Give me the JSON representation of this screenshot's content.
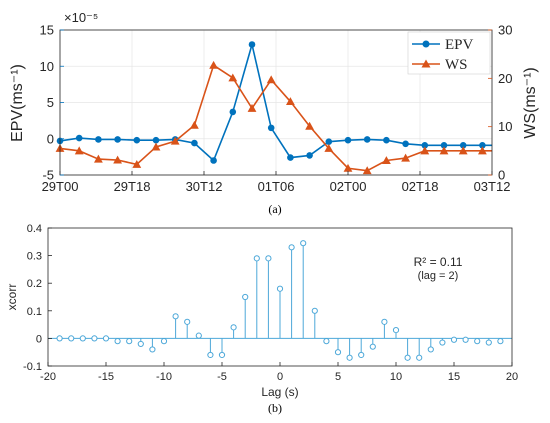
{
  "chart_data": [
    {
      "type": "line",
      "caption": "(a)",
      "x_ticks": [
        "29T00",
        "29T18",
        "30T12",
        "01T06",
        "02T00",
        "02T18",
        "03T12"
      ],
      "x_range": [
        0,
        27
      ],
      "y_left": {
        "label": "EPV(ms⁻¹)",
        "multiplier": "×10⁻⁵",
        "ylim": [
          -5,
          15
        ],
        "ticks": [
          "-5",
          "0",
          "5",
          "10",
          "15"
        ],
        "color": "#0072BD"
      },
      "y_right": {
        "label": "WS(ms⁻¹)",
        "ylim": [
          0,
          30
        ],
        "ticks": [
          "0",
          "10",
          "20",
          "30"
        ],
        "color": "#D95319"
      },
      "grid": true,
      "legend_position": "top-right",
      "series": [
        {
          "name": "EPV",
          "axis": "left",
          "marker": "circle",
          "color": "#0072BD",
          "x": [
            0,
            1.2,
            2.4,
            3.6,
            4.8,
            6,
            7.2,
            8.4,
            9.6,
            10.8,
            12,
            13.2,
            14.4,
            15.6,
            16.8,
            18,
            19.2,
            20.4,
            21.6,
            22.8,
            24,
            25.2,
            26.4,
            27
          ],
          "values": [
            -0.3,
            0.1,
            -0.1,
            -0.1,
            -0.2,
            -0.2,
            -0.1,
            -0.6,
            -3.0,
            3.7,
            13.0,
            1.5,
            -2.6,
            -2.3,
            -0.4,
            -0.2,
            -0.1,
            -0.2,
            -0.7,
            -0.9,
            -0.9,
            -0.9,
            -0.9,
            -0.9
          ]
        },
        {
          "name": "WS",
          "axis": "right",
          "marker": "triangle",
          "color": "#D95319",
          "x": [
            0,
            1.2,
            2.4,
            3.6,
            4.8,
            6,
            7.2,
            8.4,
            9.6,
            10.8,
            12,
            13.2,
            14.4,
            15.6,
            16.8,
            18,
            19.2,
            20.4,
            21.6,
            22.8,
            24,
            25.2,
            26.4,
            27
          ],
          "values": [
            5.5,
            5.0,
            3.3,
            3.1,
            2.2,
            5.8,
            7.0,
            10.3,
            22.7,
            20.1,
            13.8,
            19.7,
            15.2,
            10.1,
            5.5,
            1.4,
            0.9,
            3.0,
            3.5,
            5.0,
            5.0,
            5.0,
            5.0,
            5.0
          ]
        }
      ]
    },
    {
      "type": "stem",
      "caption": "(b)",
      "xlabel": "Lag (s)",
      "ylabel": "xcorr",
      "xlim": [
        -20,
        20
      ],
      "ylim": [
        -0.1,
        0.4
      ],
      "x_ticks": [
        "-20",
        "-15",
        "-10",
        "-5",
        "0",
        "5",
        "10",
        "15",
        "20"
      ],
      "y_ticks": [
        "-0.1",
        "0",
        "0.1",
        "0.2",
        "0.3",
        "0.4"
      ],
      "color": "#4DA8D9",
      "annotation": {
        "r2": "R² = 0.11",
        "lag": "(lag = 2)"
      },
      "x": [
        -19,
        -18,
        -17,
        -16,
        -15,
        -14,
        -13,
        -12,
        -11,
        -10,
        -9,
        -8,
        -7,
        -6,
        -5,
        -4,
        -3,
        -2,
        -1,
        0,
        1,
        2,
        3,
        4,
        5,
        6,
        7,
        8,
        9,
        10,
        11,
        12,
        13,
        14,
        15,
        16,
        17,
        18,
        19
      ],
      "values": [
        0.0,
        0.0,
        0.0,
        0.0,
        0.0,
        -0.01,
        -0.01,
        -0.02,
        -0.04,
        -0.01,
        0.08,
        0.06,
        0.01,
        -0.06,
        -0.06,
        0.04,
        0.15,
        0.29,
        0.29,
        0.18,
        0.33,
        0.345,
        0.1,
        -0.01,
        -0.05,
        -0.07,
        -0.06,
        -0.03,
        0.06,
        0.03,
        -0.07,
        -0.07,
        -0.04,
        -0.015,
        -0.005,
        -0.005,
        -0.01,
        -0.015,
        -0.01
      ]
    }
  ]
}
